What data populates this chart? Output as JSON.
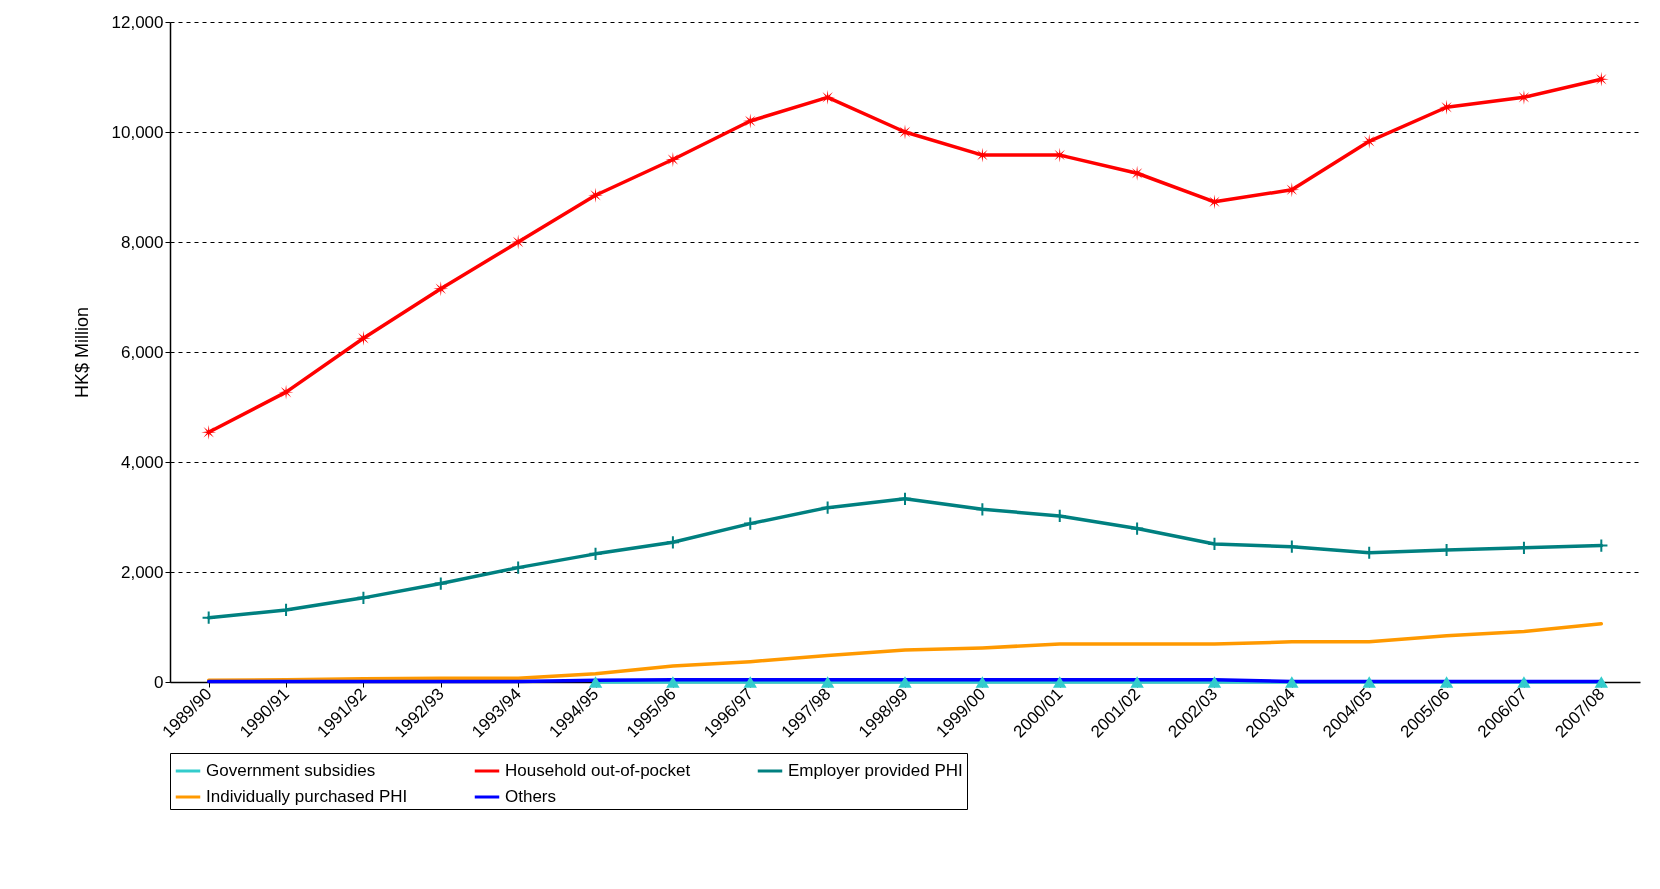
{
  "chart_data": {
    "type": "line",
    "ylabel": "HK$ Million",
    "categories": [
      "1989/90",
      "1990/91",
      "1991/92",
      "1992/93",
      "1993/94",
      "1994/95",
      "1995/96",
      "1996/97",
      "1997/98",
      "1998/99",
      "1999/00",
      "2000/01",
      "2001/02",
      "2002/03",
      "2003/04",
      "2004/05",
      "2005/06",
      "2006/07",
      "2007/08"
    ],
    "series": [
      {
        "name": "Government subsidies",
        "color": "#33cccc",
        "marker": "triangle",
        "values": [
          null,
          null,
          null,
          null,
          null,
          0,
          0,
          0,
          0,
          0,
          0,
          0,
          0,
          0,
          0,
          0,
          0,
          0,
          0
        ]
      },
      {
        "name": "Household out-of-pocket",
        "color": "#ff0000",
        "marker": "star",
        "values": [
          4540,
          5270,
          6250,
          7150,
          8000,
          8850,
          9500,
          10200,
          10630,
          10000,
          9580,
          9580,
          9250,
          8730,
          8950,
          9830,
          10450,
          10630,
          10960
        ]
      },
      {
        "name": "Employer provided PHI",
        "color": "#008080",
        "marker": "cross",
        "values": [
          1170,
          1310,
          1530,
          1790,
          2080,
          2330,
          2540,
          2880,
          3170,
          3330,
          3140,
          3020,
          2790,
          2510,
          2460,
          2350,
          2400,
          2440,
          2480
        ]
      },
      {
        "name": "Individually purchased PHI",
        "color": "#ff9900",
        "marker": "none",
        "values": [
          30,
          40,
          60,
          70,
          70,
          150,
          290,
          370,
          480,
          580,
          620,
          690,
          690,
          690,
          730,
          730,
          840,
          920,
          1060
        ]
      },
      {
        "name": "Others",
        "color": "#0000ff",
        "marker": "none",
        "values": [
          10,
          10,
          10,
          10,
          10,
          30,
          40,
          40,
          40,
          40,
          40,
          40,
          40,
          40,
          10,
          10,
          10,
          10,
          10
        ]
      }
    ],
    "ylim": [
      0,
      12000
    ],
    "yticks": [
      0,
      {
        "value": 2000,
        "label": "2,000"
      },
      {
        "value": 4000,
        "label": "4,000"
      },
      {
        "value": 6000,
        "label": "6,000"
      },
      {
        "value": 8000,
        "label": "8,000"
      },
      {
        "value": 10000,
        "label": "10,000"
      },
      {
        "value": 12000,
        "label": "12,000"
      }
    ],
    "grid": "y",
    "legend": "bottom"
  }
}
